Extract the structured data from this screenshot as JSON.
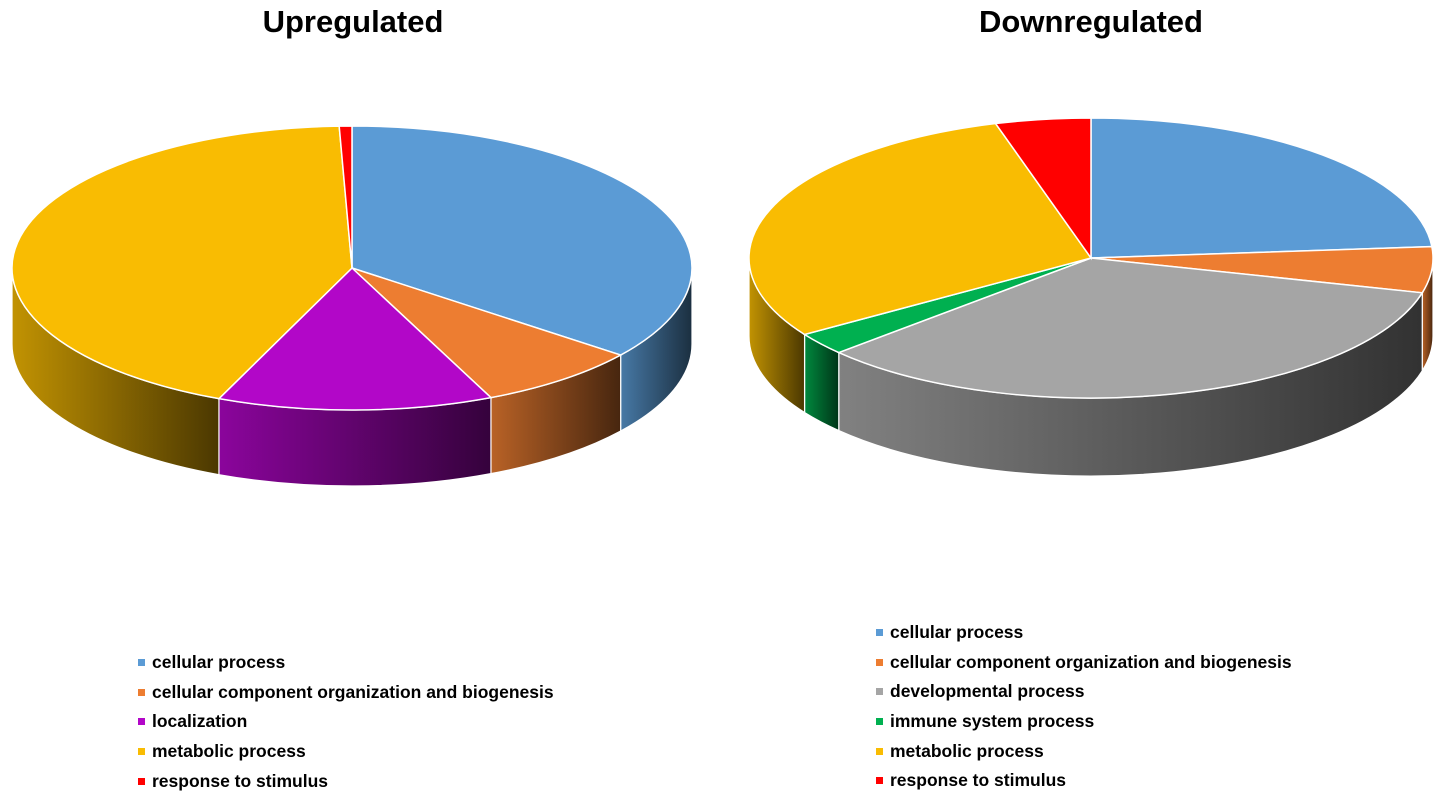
{
  "chart_data": [
    {
      "type": "pie",
      "title": "Upregulated",
      "labels": [
        "cellular process",
        "cellular component organization and biogenesis",
        "localization",
        "metabolic process",
        "response to stimulus"
      ],
      "values": [
        35.5,
        7.8,
        13.1,
        43.0,
        0.6
      ],
      "colors": [
        "#5b9bd5",
        "#ed7d31",
        "#b207c8",
        "#f9bc02",
        "#ff0000"
      ],
      "legend_position": "bottom"
    },
    {
      "type": "pie",
      "title": "Downregulated",
      "labels": [
        "cellular process",
        "cellular component organization and biogenesis",
        "developmental process",
        "immune system process",
        "metabolic process",
        "response to stimulus"
      ],
      "values": [
        23.7,
        5.3,
        34.2,
        2.6,
        29.7,
        4.5
      ],
      "colors": [
        "#5b9bd5",
        "#ed7d31",
        "#a5a5a5",
        "#00b050",
        "#f9bc02",
        "#ff0000"
      ],
      "legend_position": "bottom"
    }
  ]
}
